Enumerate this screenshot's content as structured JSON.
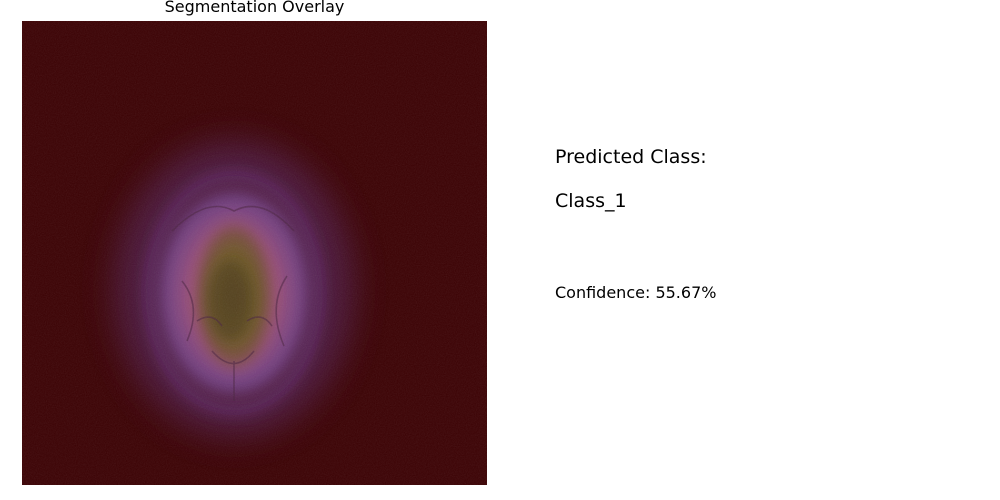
{
  "plot": {
    "title": "Segmentation Overlay"
  },
  "prediction": {
    "label": "Predicted Class:",
    "value": "Class_1",
    "confidence_label": "Confidence:",
    "confidence_value": "55.67%",
    "confidence_text": "Confidence: 55.67%"
  },
  "colors": {
    "mask_background": "#3b0103",
    "tissue_outer": "#7d4c9a",
    "tissue_inner": "#b5547a",
    "core": "#6e5a26"
  }
}
